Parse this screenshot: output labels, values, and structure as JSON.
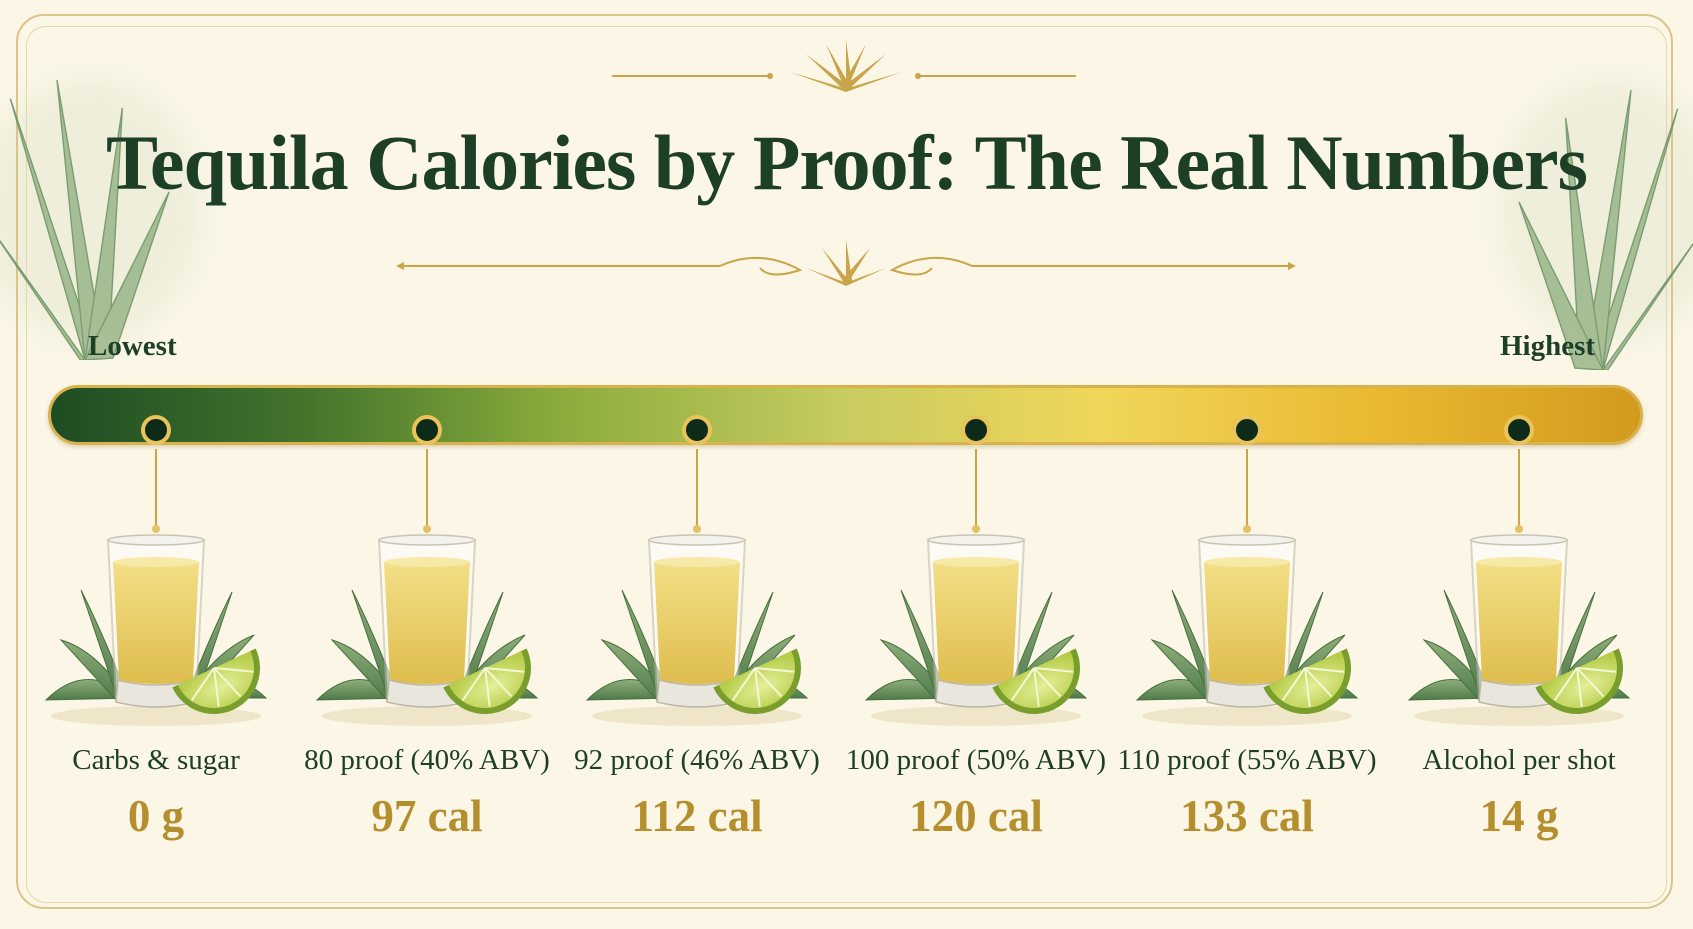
{
  "title": "Tequila Calories by Proof: The Real Numbers",
  "scale": {
    "low_label": "Lowest",
    "high_label": "Highest"
  },
  "items": [
    {
      "label": "Carbs & sugar",
      "value": "0 g"
    },
    {
      "label": "80 proof (40% ABV)",
      "value": "97 cal"
    },
    {
      "label": "92 proof (46% ABV)",
      "value": "112 cal"
    },
    {
      "label": "100 proof (50% ABV)",
      "value": "120 cal"
    },
    {
      "label": "110 proof (55% ABV)",
      "value": "133 cal"
    },
    {
      "label": "Alcohol per shot",
      "value": "14 g"
    }
  ],
  "colors": {
    "background": "#fbf6e6",
    "title": "#1c3f26",
    "value": "#b58e2d",
    "gold": "#d8b24c",
    "bar_start": "#1e4c24",
    "bar_end": "#d39a1e"
  },
  "icons": [
    "agave-icon",
    "shot-glass-icon",
    "lime-wedge-icon",
    "agave-ornament-icon"
  ]
}
